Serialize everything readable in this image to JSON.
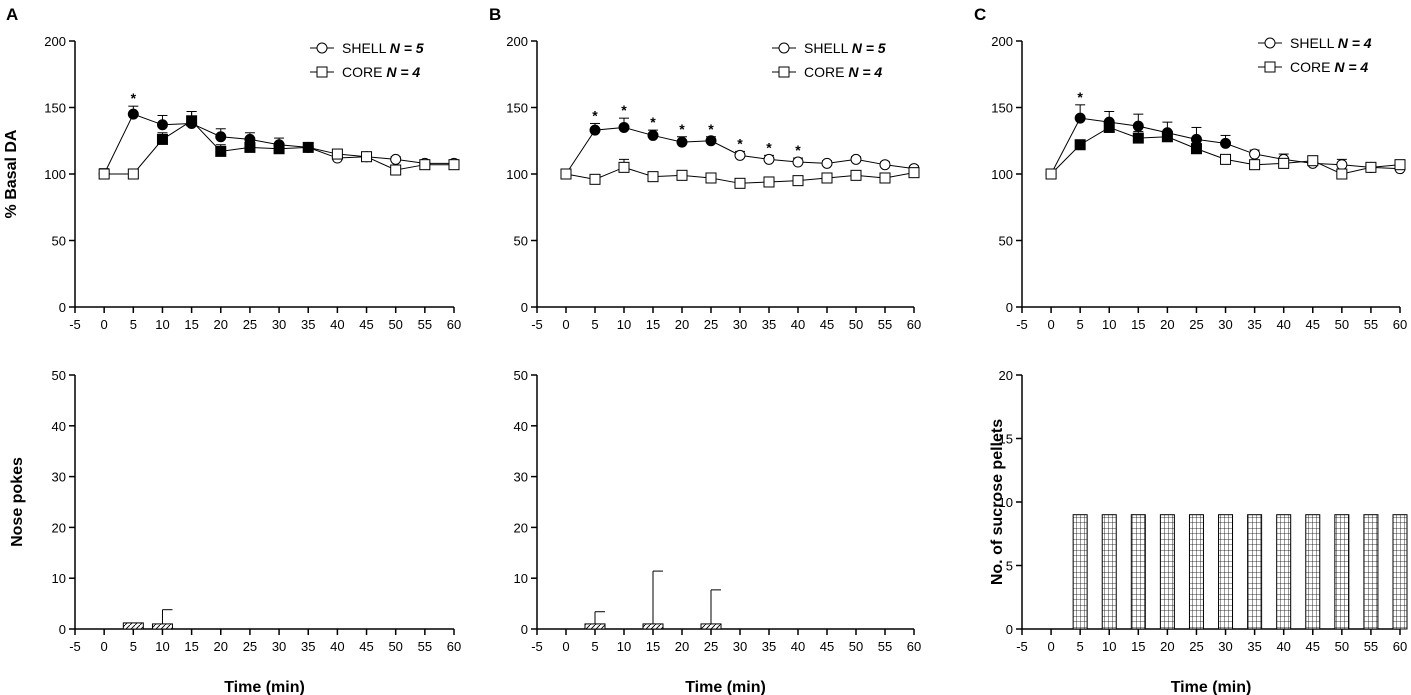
{
  "panels": [
    {
      "letter": "A"
    },
    {
      "letter": "B"
    },
    {
      "letter": "C"
    }
  ],
  "chart_data": [
    {
      "type": "line",
      "panel": "A",
      "ylabel": "% Basal DA",
      "xlabel": "",
      "xlim": [
        -5,
        60
      ],
      "ylim": [
        0,
        200
      ],
      "xticks": [
        -5,
        0,
        5,
        10,
        15,
        20,
        25,
        30,
        35,
        40,
        45,
        50,
        55,
        60
      ],
      "yticks": [
        0,
        50,
        100,
        150,
        200
      ],
      "legend_position": "top-right",
      "x": [
        0,
        5,
        10,
        15,
        20,
        25,
        30,
        35,
        40,
        45,
        50,
        55,
        60
      ],
      "series": [
        {
          "name": "SHELL",
          "n_label": "N = 5",
          "marker": "circle",
          "values": [
            100,
            145,
            137,
            138,
            128,
            126,
            122,
            120,
            112,
            113,
            111,
            108,
            108
          ],
          "errors": [
            4,
            6,
            7,
            9,
            6,
            5,
            5,
            3,
            3,
            2,
            2,
            2,
            2
          ],
          "filled": [
            false,
            true,
            true,
            true,
            true,
            true,
            true,
            true,
            false,
            false,
            false,
            false,
            false
          ]
        },
        {
          "name": "CORE",
          "n_label": "N = 4",
          "marker": "square",
          "values": [
            100,
            100,
            126,
            140,
            117,
            120,
            119,
            120,
            115,
            113,
            103,
            107,
            107
          ],
          "errors": [
            2,
            2,
            5,
            7,
            5,
            4,
            4,
            3,
            3,
            2,
            2,
            2,
            2
          ],
          "filled": [
            false,
            false,
            true,
            true,
            true,
            true,
            true,
            true,
            false,
            false,
            false,
            false,
            false
          ]
        }
      ],
      "annotations": [
        {
          "x": 5,
          "text": "*"
        }
      ]
    },
    {
      "type": "line",
      "panel": "B",
      "xlabel": "",
      "ylabel": "",
      "xlim": [
        -5,
        60
      ],
      "ylim": [
        0,
        200
      ],
      "xticks": [
        -5,
        0,
        5,
        10,
        15,
        20,
        25,
        30,
        35,
        40,
        45,
        50,
        55,
        60
      ],
      "yticks": [
        0,
        50,
        100,
        150,
        200
      ],
      "legend_position": "top-right",
      "x": [
        0,
        5,
        10,
        15,
        20,
        25,
        30,
        35,
        40,
        45,
        50,
        55,
        60
      ],
      "series": [
        {
          "name": "SHELL",
          "n_label": "N = 5",
          "marker": "circle",
          "values": [
            100,
            133,
            135,
            129,
            124,
            125,
            114,
            111,
            109,
            108,
            111,
            107,
            104
          ],
          "errors": [
            3,
            5,
            7,
            4,
            4,
            3,
            3,
            3,
            3,
            2,
            2,
            2,
            2
          ],
          "filled": [
            false,
            true,
            true,
            true,
            true,
            true,
            false,
            false,
            false,
            false,
            false,
            false,
            false
          ]
        },
        {
          "name": "CORE",
          "n_label": "N = 4",
          "marker": "square",
          "values": [
            100,
            96,
            105,
            98,
            99,
            97,
            93,
            94,
            95,
            97,
            99,
            97,
            101
          ],
          "errors": [
            2,
            2,
            6,
            2,
            2,
            2,
            2,
            2,
            2,
            2,
            2,
            2,
            2
          ],
          "filled": [
            false,
            false,
            false,
            false,
            false,
            false,
            false,
            false,
            false,
            false,
            false,
            false,
            false
          ]
        }
      ],
      "annotations": [
        {
          "x": 5,
          "text": "*"
        },
        {
          "x": 10,
          "text": "*"
        },
        {
          "x": 15,
          "text": "*"
        },
        {
          "x": 20,
          "text": "*"
        },
        {
          "x": 25,
          "text": "*"
        },
        {
          "x": 30,
          "text": "*"
        },
        {
          "x": 35,
          "text": "*"
        },
        {
          "x": 40,
          "text": "*"
        }
      ]
    },
    {
      "type": "line",
      "panel": "C",
      "xlabel": "",
      "ylabel": "",
      "xlim": [
        -5,
        60
      ],
      "ylim": [
        0,
        200
      ],
      "xticks": [
        -5,
        0,
        5,
        10,
        15,
        20,
        25,
        30,
        35,
        40,
        45,
        50,
        55,
        60
      ],
      "yticks": [
        0,
        50,
        100,
        150,
        200
      ],
      "legend_position": "top-right",
      "x": [
        0,
        5,
        10,
        15,
        20,
        25,
        30,
        35,
        40,
        45,
        50,
        55,
        60
      ],
      "series": [
        {
          "name": "SHELL",
          "n_label": "N = 4",
          "marker": "circle",
          "values": [
            100,
            142,
            139,
            136,
            131,
            126,
            123,
            115,
            111,
            108,
            107,
            105,
            104
          ],
          "errors": [
            3,
            10,
            8,
            9,
            8,
            9,
            6,
            3,
            4,
            3,
            4,
            3,
            3
          ],
          "filled": [
            false,
            true,
            true,
            true,
            true,
            true,
            true,
            false,
            false,
            false,
            false,
            false,
            false
          ]
        },
        {
          "name": "CORE",
          "n_label": "N = 4",
          "marker": "square",
          "values": [
            100,
            122,
            135,
            127,
            128,
            119,
            111,
            107,
            108,
            110,
            100,
            105,
            107
          ],
          "errors": [
            2,
            3,
            5,
            5,
            4,
            4,
            3,
            3,
            3,
            3,
            3,
            2,
            2
          ],
          "filled": [
            false,
            true,
            true,
            true,
            true,
            true,
            false,
            false,
            false,
            false,
            false,
            false,
            false
          ]
        }
      ],
      "annotations": [
        {
          "x": 5,
          "text": "*"
        }
      ]
    },
    {
      "type": "bar",
      "panel": "A",
      "ylabel": "Nose pokes",
      "xlabel": "Time (min)",
      "xlim": [
        -5,
        60
      ],
      "ylim": [
        0,
        50
      ],
      "xticks": [
        -5,
        0,
        5,
        10,
        15,
        20,
        25,
        30,
        35,
        40,
        45,
        50,
        55,
        60
      ],
      "yticks": [
        0,
        10,
        20,
        30,
        40,
        50
      ],
      "pattern": "diagonal-hatch",
      "x": [
        5,
        10,
        15,
        20,
        25,
        30,
        35,
        40,
        45,
        50,
        55,
        60
      ],
      "values": [
        1.2,
        1.0,
        0,
        0,
        0,
        0,
        0,
        0,
        0,
        0,
        0,
        0
      ],
      "errors": [
        0,
        2.8,
        0,
        0,
        0,
        0,
        0,
        0,
        0,
        0,
        0,
        0
      ]
    },
    {
      "type": "bar",
      "panel": "B",
      "xlabel": "Time (min)",
      "ylabel": "",
      "xlim": [
        -5,
        60
      ],
      "ylim": [
        0,
        50
      ],
      "xticks": [
        -5,
        0,
        5,
        10,
        15,
        20,
        25,
        30,
        35,
        40,
        45,
        50,
        55,
        60
      ],
      "yticks": [
        0,
        10,
        20,
        30,
        40,
        50
      ],
      "pattern": "diagonal-hatch",
      "x": [
        5,
        15,
        25
      ],
      "values": [
        1.0,
        1.0,
        1.0
      ],
      "errors": [
        2.4,
        10.4,
        6.7
      ]
    },
    {
      "type": "bar",
      "panel": "C",
      "ylabel": "No. of sucrose pellets",
      "xlabel": "Time (min)",
      "xlim": [
        -5,
        60
      ],
      "ylim": [
        0,
        20
      ],
      "xticks": [
        -5,
        0,
        5,
        10,
        15,
        20,
        25,
        30,
        35,
        40,
        45,
        50,
        55,
        60
      ],
      "yticks": [
        0,
        5,
        10,
        15,
        20
      ],
      "pattern": "grid",
      "x": [
        5,
        10,
        15,
        20,
        25,
        30,
        35,
        40,
        45,
        50,
        55,
        60
      ],
      "values": [
        9,
        9,
        9,
        9,
        9,
        9,
        9,
        9,
        9,
        9,
        9,
        9
      ],
      "errors": [
        0,
        0,
        0,
        0,
        0,
        0,
        0,
        0,
        0,
        0,
        0,
        0
      ]
    }
  ]
}
